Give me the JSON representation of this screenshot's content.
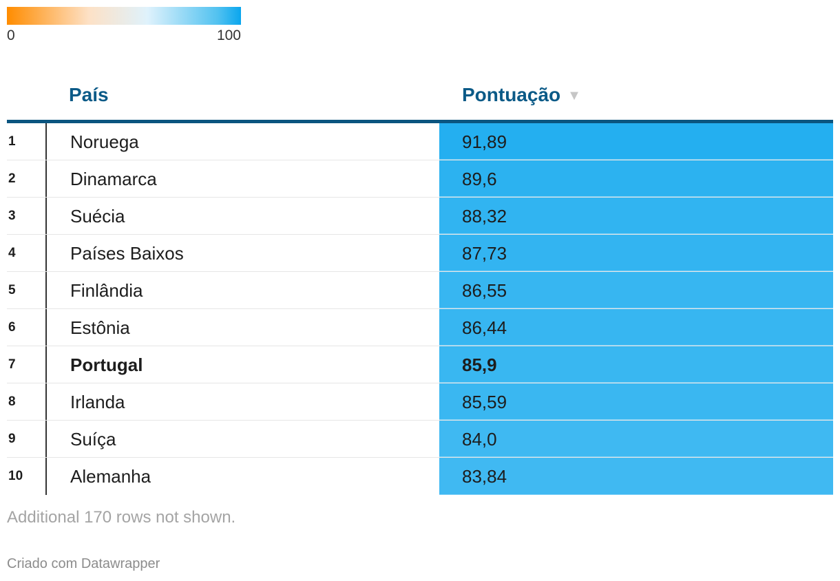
{
  "legend": {
    "min_label": "0",
    "max_label": "100",
    "min": 0,
    "max": 100,
    "colors": [
      "#ff8c00",
      "#fde1c6",
      "#dff2fc",
      "#52c2f0",
      "#0aa6ee"
    ]
  },
  "table": {
    "headers": {
      "country": "País",
      "score": "Pontuação"
    },
    "sort_icon": "sort-descending-icon",
    "highlight_color": "#0b5a87"
  },
  "chart_data": {
    "type": "table",
    "columns": [
      "País",
      "Pontuação"
    ],
    "rows": [
      {
        "rank": "1",
        "country": "Noruega",
        "score": "91,89",
        "value": 91.89
      },
      {
        "rank": "2",
        "country": "Dinamarca",
        "score": "89,6",
        "value": 89.6
      },
      {
        "rank": "3",
        "country": "Suécia",
        "score": "88,32",
        "value": 88.32
      },
      {
        "rank": "4",
        "country": "Países Baixos",
        "score": "87,73",
        "value": 87.73
      },
      {
        "rank": "5",
        "country": "Finlândia",
        "score": "86,55",
        "value": 86.55
      },
      {
        "rank": "6",
        "country": "Estônia",
        "score": "86,44",
        "value": 86.44
      },
      {
        "rank": "7",
        "country": "Portugal",
        "score": "85,9",
        "value": 85.9,
        "bold": true
      },
      {
        "rank": "8",
        "country": "Irlanda",
        "score": "85,59",
        "value": 85.59
      },
      {
        "rank": "9",
        "country": "Suíça",
        "score": "84,0",
        "value": 84.0
      },
      {
        "rank": "10",
        "country": "Alemanha",
        "score": "83,84",
        "value": 83.84
      }
    ]
  },
  "footer": {
    "note": "Additional 170 rows not shown.",
    "credit": "Criado com Datawrapper"
  }
}
